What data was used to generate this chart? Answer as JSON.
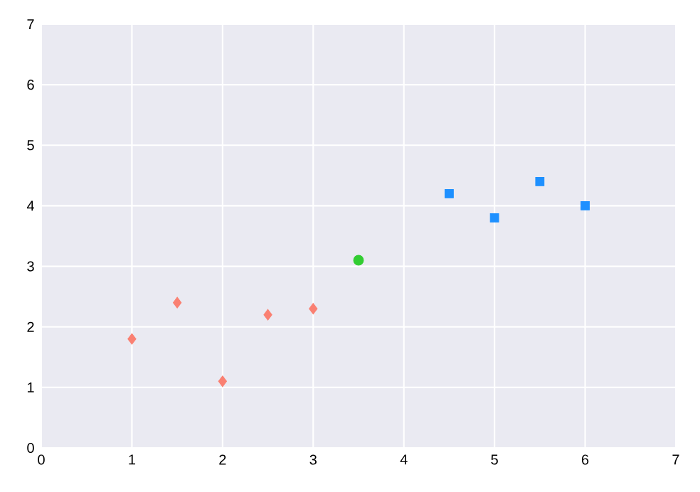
{
  "chart_data": {
    "type": "scatter",
    "xlim": [
      0,
      7
    ],
    "ylim": [
      0,
      7
    ],
    "xticks": [
      0,
      1,
      2,
      3,
      4,
      5,
      6,
      7
    ],
    "yticks": [
      0,
      1,
      2,
      3,
      4,
      5,
      6,
      7
    ],
    "grid": true,
    "series": [
      {
        "color": "#fa8072",
        "marker": "diamond",
        "x": [
          1,
          1.5,
          2,
          2.5,
          3
        ],
        "values": [
          1.8,
          2.4,
          1.1,
          2.2,
          2.3
        ]
      },
      {
        "color": "#32cd32",
        "marker": "circle",
        "x": [
          3.5
        ],
        "values": [
          3.1
        ]
      },
      {
        "color": "#1e90ff",
        "marker": "square",
        "x": [
          4.5,
          5,
          5.5,
          6
        ],
        "values": [
          4.2,
          3.8,
          4.4,
          4.0
        ]
      }
    ]
  }
}
